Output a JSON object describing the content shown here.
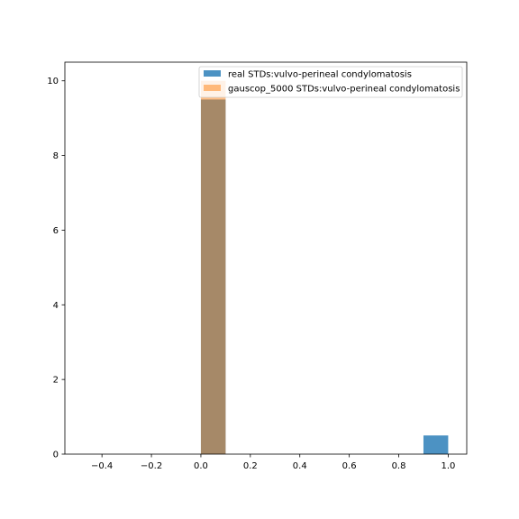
{
  "chart_data": {
    "type": "bar",
    "title": "",
    "xlabel": "",
    "ylabel": "",
    "xlim": [
      -0.55,
      1.075
    ],
    "ylim": [
      0,
      10.5
    ],
    "x_ticks": [
      "−0.4",
      "−0.2",
      "0.0",
      "0.2",
      "0.4",
      "0.6",
      "0.8",
      "1.0"
    ],
    "x_tick_values": [
      -0.4,
      -0.2,
      0.0,
      0.2,
      0.4,
      0.6,
      0.8,
      1.0
    ],
    "y_ticks": [
      "0",
      "2",
      "4",
      "6",
      "8",
      "10"
    ],
    "y_tick_values": [
      0,
      2,
      4,
      6,
      8,
      10
    ],
    "grid": false,
    "legend_position": "top-right",
    "series": [
      {
        "name": "real STDs:vulvo-perineal condylomatosis",
        "color": "#1f77b4",
        "opacity": 0.8,
        "bins": [
          {
            "x0": 0.0,
            "x1": 0.1,
            "value": 9.5
          },
          {
            "x0": 0.9,
            "x1": 1.0,
            "value": 0.5
          }
        ]
      },
      {
        "name": "gauscop_5000 STDs:vulvo-perineal condylomatosis",
        "color": "#ff7f0e",
        "opacity": 0.5,
        "bins": [
          {
            "x0": 0.0,
            "x1": 0.1,
            "value": 10.0
          }
        ]
      }
    ]
  }
}
